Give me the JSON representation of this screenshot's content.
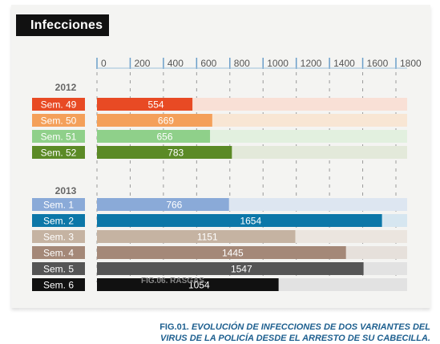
{
  "title": "Infecciones",
  "caption": {
    "fig": "FIG.01.",
    "text": "EVOLUCIÓN DE INFECCIONES DE DOS VARIANTES DEL VIRUS DE LA POLICÍA DESDE EL ARRESTO DE SU CABECILLA."
  },
  "note": "FIG.06. RASGAS.",
  "chart_data": {
    "type": "bar",
    "orientation": "horizontal",
    "title": "Infecciones",
    "xlim": [
      0,
      1800
    ],
    "ticks": [
      "0",
      "200",
      "400",
      "600",
      "800",
      "1000",
      "1200",
      "1400",
      "1600",
      "1800"
    ],
    "groups": [
      {
        "label": "2012",
        "bars": [
          {
            "category": "Sem. 49",
            "value": 554,
            "label": "554",
            "color": "#e84a24",
            "track": "#f9e0d6"
          },
          {
            "category": "Sem. 50",
            "value": 669,
            "label": "669",
            "color": "#f4a05a",
            "track": "#f8e6d4"
          },
          {
            "category": "Sem. 51",
            "value": 656,
            "label": "656",
            "color": "#8fd08a",
            "track": "#e2f0df"
          },
          {
            "category": "Sem. 52",
            "value": 783,
            "label": "783",
            "color": "#5b8a26",
            "track": "#e3e9da"
          }
        ]
      },
      {
        "label": "2013",
        "bars": [
          {
            "category": "Sem. 1",
            "value": 766,
            "label": "766",
            "color": "#8aaad8",
            "track": "#dde6f1"
          },
          {
            "category": "Sem. 2",
            "value": 1654,
            "label": "1654",
            "color": "#0c77a8",
            "track": "#d6e6f0"
          },
          {
            "category": "Sem. 3",
            "value": 1151,
            "label": "1151",
            "color": "#c5b3a2",
            "track": "#ebe5df"
          },
          {
            "category": "Sem. 4",
            "value": 1445,
            "label": "1445",
            "color": "#a48878",
            "track": "#e6e0db"
          },
          {
            "category": "Sem. 5",
            "value": 1547,
            "label": "1547",
            "color": "#555555",
            "track": "#e2e2e2"
          },
          {
            "category": "Sem. 6",
            "value": 1054,
            "label": "1054",
            "color": "#111111",
            "track": "#e2e2e2"
          }
        ]
      }
    ]
  }
}
